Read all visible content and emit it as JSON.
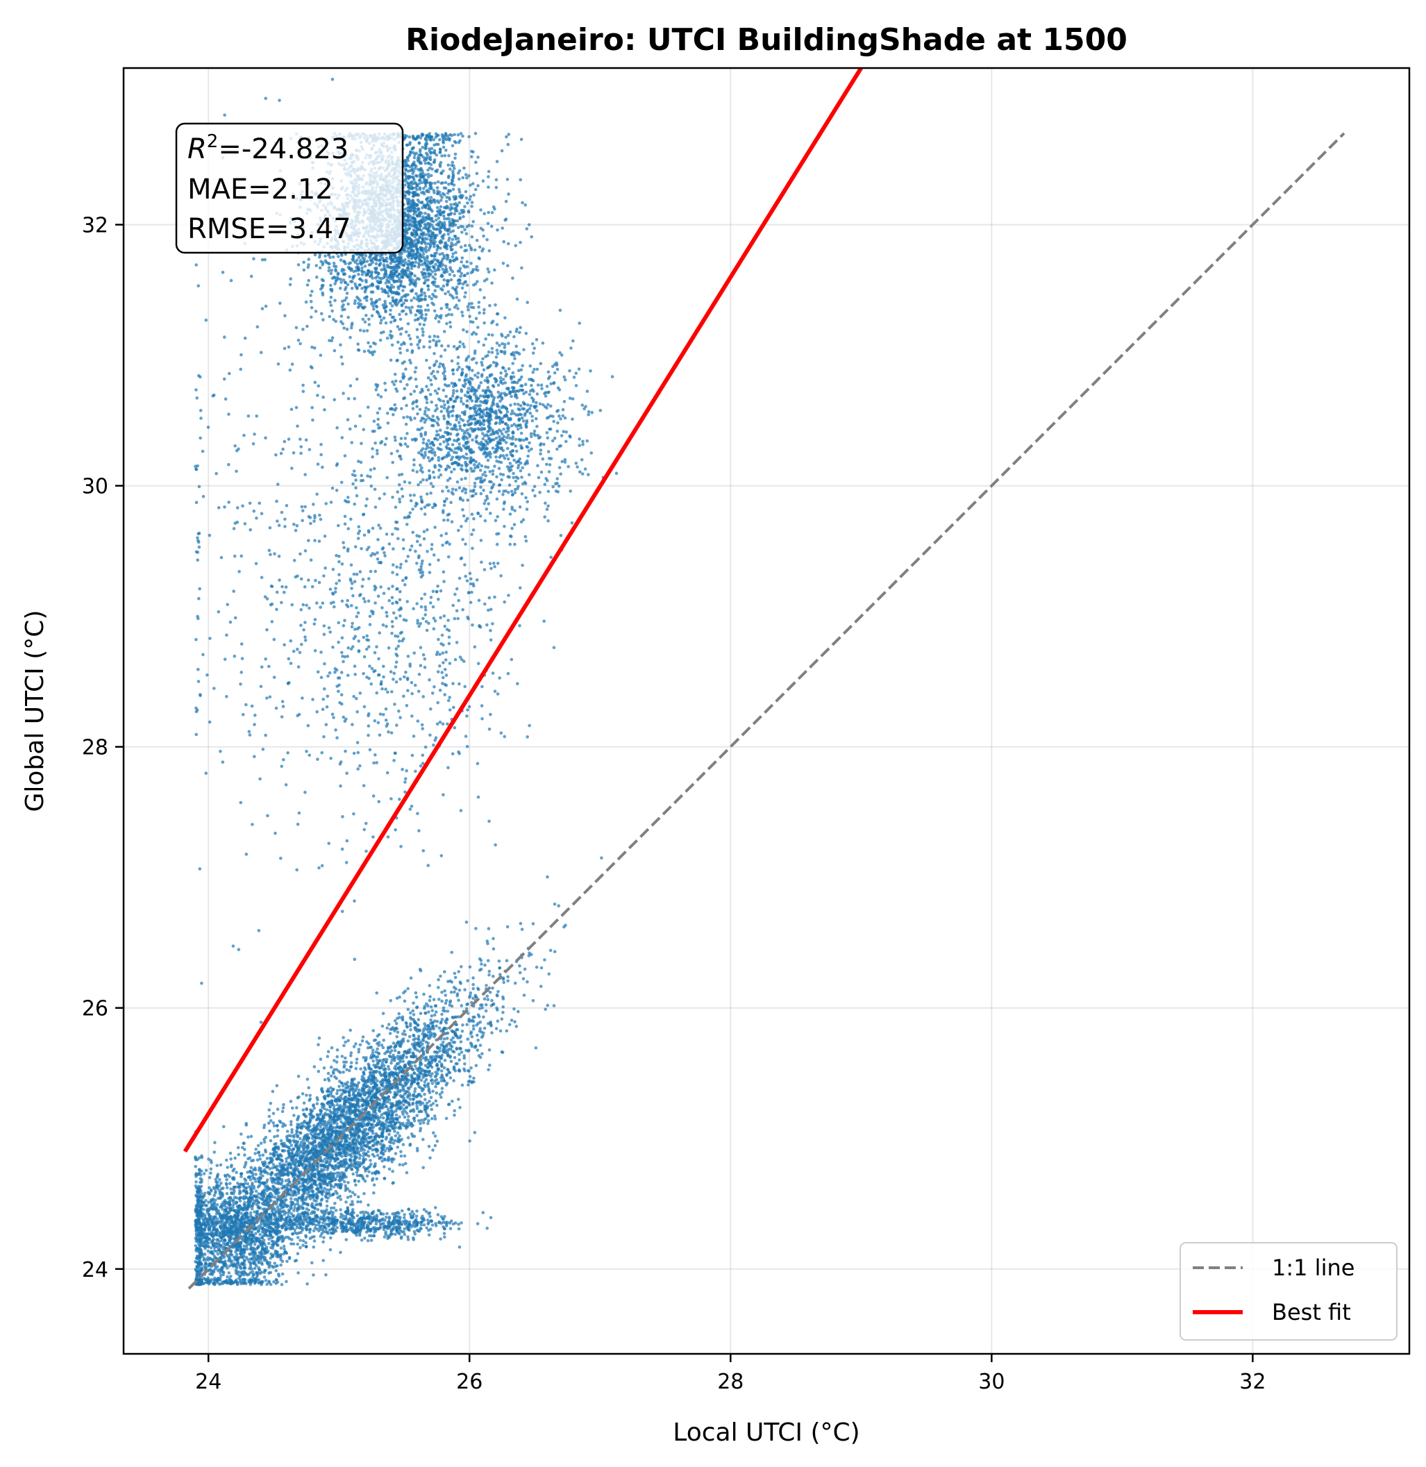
{
  "chart_data": {
    "type": "scatter",
    "title": "RiodeJaneiro: UTCI BuildingShade at 1500",
    "xlabel": "Local UTCI (°C)",
    "ylabel": "Global UTCI (°C)",
    "xlim": [
      23.35,
      33.2
    ],
    "ylim": [
      23.35,
      33.2
    ],
    "xticks": [
      24,
      26,
      28,
      30,
      32
    ],
    "yticks": [
      24,
      26,
      28,
      30,
      32
    ],
    "xtick_labels": [
      "24",
      "26",
      "28",
      "30",
      "32"
    ],
    "ytick_labels": [
      "24",
      "26",
      "28",
      "30",
      "32"
    ],
    "grid": true,
    "stats": {
      "r2_label": "R",
      "r2_sup": "2",
      "r2_value": "=-24.823",
      "mae": "MAE=2.12",
      "rmse": "RMSE=3.47"
    },
    "legend": {
      "placement": "lower-right",
      "entries": [
        "1:1 line",
        "Best fit"
      ]
    },
    "series": [
      {
        "name": "1:1 line",
        "kind": "line",
        "style": "dashed",
        "color": "#808080",
        "x": [
          23.85,
          32.7
        ],
        "y": [
          23.85,
          32.7
        ]
      },
      {
        "name": "Best fit",
        "kind": "line",
        "style": "solid",
        "color": "#ff0000",
        "x": [
          23.82,
          29.0
        ],
        "y": [
          24.9,
          33.2
        ]
      },
      {
        "kind": "scatter",
        "color": "#1f77b4",
        "clusters": [
          {
            "points": 4500,
            "x_mean": 25.0,
            "y_mean": 25.0,
            "along_sd": 0.75,
            "perp_sd": 0.2,
            "x_min": 23.9,
            "x_max": 27.2
          },
          {
            "points": 1200,
            "x_mean": 24.15,
            "y_mean": 24.3,
            "along_sd": 0.2,
            "perp_sd": 0.25,
            "x_min": 23.9,
            "x_max": 24.6
          },
          {
            "points": 3000,
            "x_mean": 25.45,
            "y_mean": 32.0,
            "x_sd": 0.3,
            "y_sd": 0.4,
            "y_max": 32.7
          },
          {
            "points": 1400,
            "x_mean": 26.1,
            "y_mean": 30.5,
            "x_sd": 0.35,
            "y_sd": 0.35
          },
          {
            "points": 650,
            "x_mean": 25.5,
            "y_mean": 29.0,
            "x_sd": 0.4,
            "y_sd": 0.75
          },
          {
            "points": 400,
            "x_mean": 24.6,
            "y_mean": 29.5,
            "x_sd": 0.5,
            "y_sd": 1.3
          },
          {
            "points": 600,
            "x_mean": 25.2,
            "y_mean": 24.35,
            "x_sd": 0.35,
            "y_sd": 0.05
          }
        ]
      }
    ]
  }
}
